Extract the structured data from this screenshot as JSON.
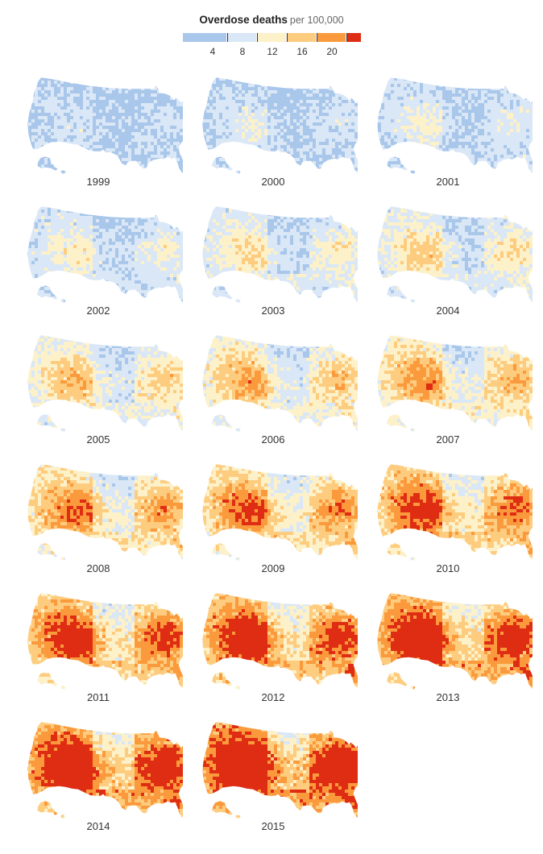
{
  "legend": {
    "title": "Overdose deaths",
    "subtitle": "per 100,000",
    "bins": [
      {
        "color": "#a9c7ea"
      },
      {
        "color": "#dae7f6"
      },
      {
        "color": "#fdf1c9"
      },
      {
        "color": "#fdcc7e"
      },
      {
        "color": "#fb9a3c"
      },
      {
        "color": "#de2d13"
      }
    ],
    "tick_labels": [
      "4",
      "8",
      "12",
      "16",
      "20"
    ]
  },
  "panels": [
    {
      "year": "1999",
      "level": 0
    },
    {
      "year": "2000",
      "level": 1
    },
    {
      "year": "2001",
      "level": 2
    },
    {
      "year": "2002",
      "level": 3
    },
    {
      "year": "2003",
      "level": 4
    },
    {
      "year": "2004",
      "level": 5
    },
    {
      "year": "2005",
      "level": 6
    },
    {
      "year": "2006",
      "level": 7
    },
    {
      "year": "2007",
      "level": 8
    },
    {
      "year": "2008",
      "level": 9
    },
    {
      "year": "2009",
      "level": 10
    },
    {
      "year": "2010",
      "level": 11
    },
    {
      "year": "2011",
      "level": 12
    },
    {
      "year": "2012",
      "level": 13
    },
    {
      "year": "2013",
      "level": 14
    },
    {
      "year": "2014",
      "level": 15
    },
    {
      "year": "2015",
      "level": 16
    }
  ],
  "chart_data": {
    "type": "heatmap",
    "title": "Overdose deaths",
    "subtitle": "per 100,000",
    "legend_breaks": [
      4,
      8,
      12,
      16,
      20
    ],
    "years": [
      "1999",
      "2000",
      "2001",
      "2002",
      "2003",
      "2004",
      "2005",
      "2006",
      "2007",
      "2008",
      "2009",
      "2010",
      "2011",
      "2012",
      "2013",
      "2014",
      "2015"
    ],
    "layout": "small multiples, 3 per row"
  }
}
